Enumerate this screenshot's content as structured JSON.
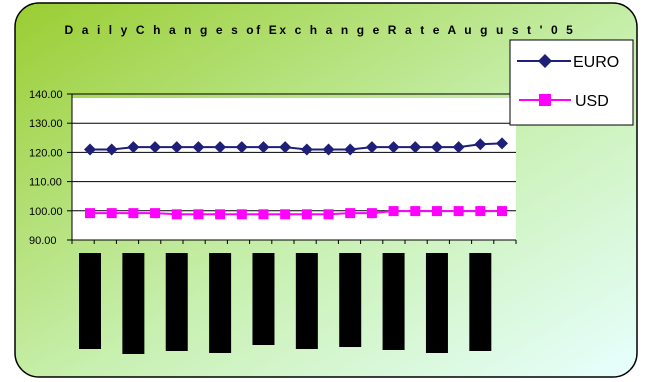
{
  "chart_data": {
    "type": "line",
    "title": "D a i l y  C h a n g e s  of  Ex c h a n g e  R a t e  A u g u s t ' 0 5",
    "xlabel": "",
    "ylabel": "",
    "ylim": [
      90,
      140
    ],
    "yticks": [
      "140.00",
      "130.00",
      "120.00",
      "110.00",
      "100.00",
      "90.00"
    ],
    "x": [
      1,
      2,
      3,
      4,
      5,
      6,
      7,
      8,
      9,
      10,
      11,
      12,
      13,
      14,
      15,
      16,
      17,
      18,
      19,
      20
    ],
    "x_tick_labels_shown_as": "black bars (illegible)",
    "x_tick_bar_count": 11,
    "grid": true,
    "legend_position": "top-right",
    "series": [
      {
        "name": "EURO",
        "color": "#1f1f7a",
        "marker": "diamond",
        "values": [
          121.0,
          121.0,
          121.8,
          121.8,
          121.8,
          121.8,
          121.8,
          121.8,
          121.8,
          121.8,
          121.0,
          121.0,
          121.0,
          121.8,
          121.8,
          121.8,
          121.8,
          121.8,
          122.8,
          123.1
        ]
      },
      {
        "name": "USD",
        "color": "#ff00ff",
        "marker": "square",
        "values": [
          99.2,
          99.2,
          99.2,
          99.2,
          98.8,
          98.8,
          98.8,
          98.8,
          98.8,
          98.8,
          98.8,
          98.8,
          99.2,
          99.2,
          99.9,
          99.9,
          99.9,
          99.9,
          99.9,
          99.9
        ]
      }
    ],
    "colors": {
      "gradient_top_left": "#9acd32",
      "gradient_bottom_right": "#e8ffff",
      "plot_background": "#ffffff",
      "x_bar_color": "#000000"
    }
  }
}
